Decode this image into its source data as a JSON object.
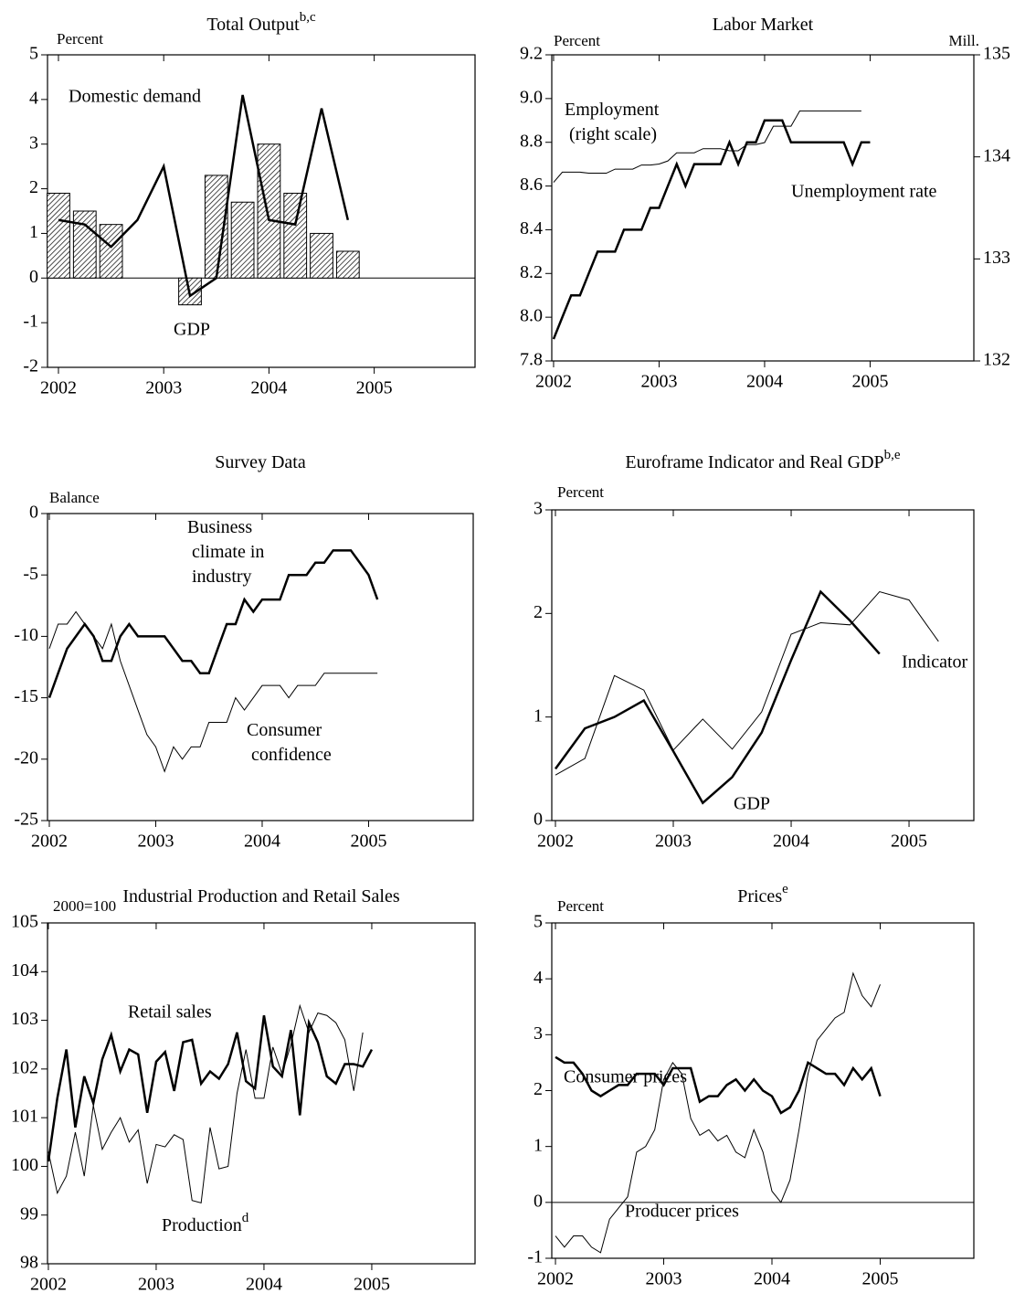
{
  "chart_data": [
    {
      "type": "bar",
      "title": "Total Output",
      "title_sup": "b,c",
      "ylabel": "Percent",
      "x": [
        2002,
        2002.25,
        2002.5,
        2002.75,
        2003,
        2003.25,
        2003.5,
        2003.75,
        2004,
        2004.25,
        2004.5,
        2004.75
      ],
      "series": [
        {
          "name": "GDP",
          "type": "bar",
          "color": "#000000",
          "fill": "hatch",
          "values": [
            1.9,
            1.5,
            1.2,
            0,
            0,
            -0.6,
            2.3,
            1.7,
            3,
            1.9,
            1,
            0.6
          ]
        },
        {
          "name": "Domestic demand",
          "type": "line",
          "color": "#000000",
          "line_width": 2.5,
          "values": [
            1.3,
            1.2,
            0.7,
            1.3,
            2.5,
            -0.4,
            0,
            4.1,
            1.3,
            1.2,
            3.8,
            1.3
          ]
        }
      ],
      "xlim": [
        2001.896,
        2005.958
      ],
      "xticks": [
        2002,
        2003,
        2004,
        2005
      ],
      "ylim": [
        -2,
        5
      ],
      "yticks": [
        -2,
        -1,
        0,
        1,
        2,
        3,
        4,
        5
      ],
      "zero_line": true
    },
    {
      "type": "line",
      "title": "Labor Market",
      "ylabel": "Percent",
      "y2label": "Mill.",
      "x": [
        2002,
        2002.083,
        2002.167,
        2002.25,
        2002.333,
        2002.417,
        2002.5,
        2002.583,
        2002.667,
        2002.75,
        2002.833,
        2002.917,
        2003,
        2003.083,
        2003.167,
        2003.25,
        2003.333,
        2003.417,
        2003.5,
        2003.583,
        2003.667,
        2003.75,
        2003.833,
        2003.917,
        2004,
        2004.083,
        2004.167,
        2004.25,
        2004.333,
        2004.417,
        2004.5,
        2004.583,
        2004.667,
        2004.75,
        2004.833,
        2004.917,
        2005
      ],
      "series": [
        {
          "name": "Unemployment rate",
          "type": "line",
          "color": "#000000",
          "line_width": 2.5,
          "values": [
            7.9,
            8,
            8.1,
            8.1,
            8.2,
            8.3,
            8.3,
            8.3,
            8.4,
            8.4,
            8.4,
            8.5,
            8.5,
            8.6,
            8.7,
            8.6,
            8.7,
            8.7,
            8.7,
            8.7,
            8.8,
            8.7,
            8.8,
            8.8,
            8.9,
            8.9,
            8.9,
            8.8,
            8.8,
            8.8,
            8.8,
            8.8,
            8.8,
            8.8,
            8.7,
            8.8,
            8.8
          ]
        },
        {
          "name": "Employment (right scale)",
          "type": "line",
          "axis": "y2",
          "color": "#000000",
          "line_width": 1,
          "values": [
            133.75,
            133.85,
            133.85,
            133.85,
            133.84,
            133.84,
            133.84,
            133.88,
            133.88,
            133.88,
            133.92,
            133.92,
            133.93,
            133.96,
            134.04,
            134.04,
            134.04,
            134.08,
            134.08,
            134.08,
            134.06,
            134.06,
            134.12,
            134.12,
            134.14,
            134.3,
            134.3,
            134.3,
            134.45,
            134.45,
            134.45,
            134.45,
            134.45,
            134.45,
            134.45,
            134.45,
            null
          ]
        }
      ],
      "xlim": [
        2001.983,
        2005.983
      ],
      "xticks": [
        2002,
        2003,
        2004,
        2005
      ],
      "ylim": [
        7.8,
        9.2
      ],
      "yticks": [
        7.8,
        {
          "value": 8,
          "label": "8.0"
        },
        8.2,
        8.4,
        8.6,
        8.8,
        {
          "value": 9,
          "label": "9.0"
        },
        9.2
      ],
      "y2lim": [
        132,
        135
      ],
      "y2ticks": [
        132,
        133,
        134,
        135
      ]
    },
    {
      "type": "line",
      "title": "Survey Data",
      "ylabel": "Balance",
      "x": [
        2002,
        2002.083,
        2002.167,
        2002.25,
        2002.333,
        2002.417,
        2002.5,
        2002.583,
        2002.667,
        2002.75,
        2002.833,
        2002.917,
        2003,
        2003.083,
        2003.167,
        2003.25,
        2003.333,
        2003.417,
        2003.5,
        2003.583,
        2003.667,
        2003.75,
        2003.833,
        2003.917,
        2004,
        2004.083,
        2004.167,
        2004.25,
        2004.333,
        2004.417,
        2004.5,
        2004.583,
        2004.667,
        2004.75,
        2004.833,
        2004.917,
        2005,
        2005.083
      ],
      "series": [
        {
          "name": "Business climate in industry",
          "type": "line",
          "color": "#000000",
          "line_width": 2.5,
          "values": [
            -15,
            -13,
            -11,
            -10,
            -9,
            -10,
            -12,
            -12,
            -10,
            -9,
            -10,
            -10,
            -10,
            -10,
            -11,
            -12,
            -12,
            -13,
            -13,
            -11,
            -9,
            -9,
            -7,
            -8,
            -7,
            -7,
            -7,
            -5,
            -5,
            -5,
            -4,
            -4,
            -3,
            -3,
            -3,
            -4,
            -5,
            -7
          ]
        },
        {
          "name": "Consumer confidence",
          "type": "line",
          "color": "#000000",
          "line_width": 1,
          "values": [
            -11,
            -9,
            -9,
            -8,
            -9,
            -10,
            -11,
            -9,
            -12,
            -14,
            -16,
            -18,
            -19,
            -21,
            -19,
            -20,
            -19,
            -19,
            -17,
            -17,
            -17,
            -15,
            -16,
            -15,
            -14,
            -14,
            -14,
            -15,
            -14,
            -14,
            -14,
            -13,
            -13,
            -13,
            -13,
            -13,
            -13,
            -13
          ]
        }
      ],
      "xlim": [
        2001.983,
        2005.983
      ],
      "xticks": [
        2002,
        2003,
        2004,
        2005
      ],
      "ylim": [
        -25,
        0
      ],
      "yticks": [
        -25,
        -20,
        -15,
        -10,
        -5,
        0
      ]
    },
    {
      "type": "line",
      "title": "Euroframe Indicator and Real GDP",
      "title_sup": "b,e",
      "ylabel": "Percent",
      "x": [
        2002,
        2002.25,
        2002.5,
        2002.75,
        2003,
        2003.25,
        2003.5,
        2003.75,
        2004,
        2004.25,
        2004.5,
        2004.75,
        2005,
        2005.25
      ],
      "series": [
        {
          "name": "GDP",
          "type": "line",
          "color": "#000000",
          "line_width": 2.5,
          "values": [
            0.5,
            0.89,
            1,
            1.16,
            0.67,
            0.17,
            0.42,
            0.85,
            1.55,
            2.21,
            1.93,
            1.61,
            null,
            null
          ]
        },
        {
          "name": "Indicator",
          "type": "line",
          "color": "#000000",
          "line_width": 1,
          "values": [
            0.44,
            0.6,
            1.4,
            1.26,
            0.68,
            0.98,
            0.69,
            1.05,
            1.8,
            1.91,
            1.89,
            2.21,
            2.13,
            1.73
          ]
        }
      ],
      "xlim": [
        2001.969,
        2005.55
      ],
      "xticks": [
        2002,
        2003,
        2004,
        2005
      ],
      "ylim": [
        0,
        3
      ],
      "yticks": [
        0,
        1,
        2,
        3
      ]
    },
    {
      "type": "line",
      "title": "Industrial Production and Retail Sales",
      "ylabel": "2000=100",
      "x": [
        2002,
        2002.083,
        2002.167,
        2002.25,
        2002.333,
        2002.417,
        2002.5,
        2002.583,
        2002.667,
        2002.75,
        2002.833,
        2002.917,
        2003,
        2003.083,
        2003.167,
        2003.25,
        2003.333,
        2003.417,
        2003.5,
        2003.583,
        2003.667,
        2003.75,
        2003.833,
        2003.917,
        2004,
        2004.083,
        2004.167,
        2004.25,
        2004.333,
        2004.417,
        2004.5,
        2004.583,
        2004.667,
        2004.75,
        2004.833,
        2004.917,
        2005
      ],
      "series": [
        {
          "name": "Retail sales",
          "type": "line",
          "color": "#000000",
          "line_width": 2.5,
          "values": [
            100.1,
            101.4,
            102.4,
            100.8,
            101.85,
            101.3,
            102.2,
            102.7,
            101.95,
            102.4,
            102.3,
            101.1,
            102.15,
            102.35,
            101.55,
            102.55,
            102.6,
            101.7,
            101.95,
            101.8,
            102.1,
            102.75,
            101.75,
            101.6,
            103.1,
            102.05,
            101.85,
            102.8,
            101.05,
            102.95,
            102.55,
            101.85,
            101.7,
            102.1,
            102.1,
            102.05,
            102.4
          ]
        },
        {
          "name": "Production",
          "name_sup": "d",
          "type": "line",
          "color": "#000000",
          "line_width": 1,
          "values": [
            100.3,
            99.45,
            99.8,
            100.7,
            99.8,
            101.25,
            100.35,
            100.7,
            101,
            100.5,
            100.75,
            99.65,
            100.45,
            100.4,
            100.65,
            100.55,
            99.3,
            99.25,
            100.8,
            99.95,
            100,
            101.5,
            102.4,
            101.4,
            101.4,
            102.45,
            101.9,
            102.5,
            103.3,
            102.75,
            103.15,
            103.1,
            102.95,
            102.6,
            101.55,
            102.75,
            null
          ]
        }
      ],
      "xlim": [
        2001.992,
        2005.958
      ],
      "xticks": [
        2002,
        2003,
        2004,
        2005
      ],
      "ylim": [
        98,
        105
      ],
      "yticks": [
        98,
        99,
        100,
        101,
        102,
        103,
        104,
        105
      ]
    },
    {
      "type": "line",
      "title": "Prices",
      "title_sup": "e",
      "ylabel": "Percent",
      "x": [
        2002,
        2002.083,
        2002.167,
        2002.25,
        2002.333,
        2002.417,
        2002.5,
        2002.583,
        2002.667,
        2002.75,
        2002.833,
        2002.917,
        2003,
        2003.083,
        2003.167,
        2003.25,
        2003.333,
        2003.417,
        2003.5,
        2003.583,
        2003.667,
        2003.75,
        2003.833,
        2003.917,
        2004,
        2004.083,
        2004.167,
        2004.25,
        2004.333,
        2004.417,
        2004.5,
        2004.583,
        2004.667,
        2004.75,
        2004.833,
        2004.917,
        2005
      ],
      "series": [
        {
          "name": "Consumer prices",
          "type": "line",
          "color": "#000000",
          "line_width": 2.5,
          "values": [
            2.6,
            2.5,
            2.5,
            2.3,
            2,
            1.9,
            2,
            2.1,
            2.1,
            2.3,
            2.3,
            2.3,
            2.1,
            2.4,
            2.4,
            2.4,
            1.8,
            1.9,
            1.9,
            2.1,
            2.2,
            2,
            2.2,
            2,
            1.9,
            1.6,
            1.7,
            2,
            2.5,
            2.4,
            2.3,
            2.3,
            2.1,
            2.4,
            2.2,
            2.4,
            1.9
          ]
        },
        {
          "name": "Producer prices",
          "type": "line",
          "color": "#000000",
          "line_width": 1,
          "values": [
            -0.6,
            -0.8,
            -0.6,
            -0.6,
            -0.8,
            -0.9,
            -0.3,
            -0.1,
            0.1,
            0.9,
            1,
            1.3,
            2.2,
            2.5,
            2.3,
            1.5,
            1.2,
            1.3,
            1.1,
            1.2,
            0.9,
            0.8,
            1.3,
            0.9,
            0.2,
            0,
            0.4,
            1.3,
            2.3,
            2.9,
            3.1,
            3.3,
            3.4,
            4.1,
            3.7,
            3.5,
            3.9
          ]
        }
      ],
      "xlim": [
        2001.966,
        2005.865
      ],
      "xticks": [
        2002,
        2003,
        2004,
        2005
      ],
      "ylim": [
        -1,
        5
      ],
      "yticks": [
        -1,
        0,
        1,
        2,
        3,
        4,
        5
      ],
      "zero_line": true
    }
  ]
}
